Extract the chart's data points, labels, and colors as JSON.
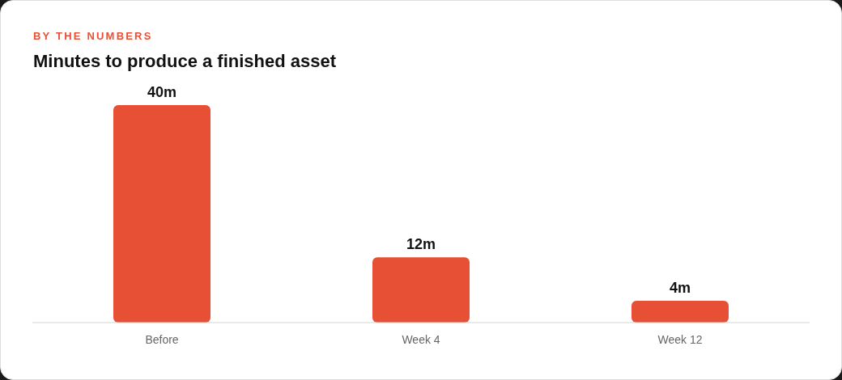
{
  "chart_data": {
    "type": "bar",
    "subtitle": "BY THE NUMBERS",
    "title": "Minutes to produce a finished asset",
    "categories": [
      "Before",
      "Week 4",
      "Week 12"
    ],
    "values": [
      40,
      12,
      4
    ],
    "value_labels": [
      "40m",
      "12m",
      "4m"
    ],
    "color": "#e85035",
    "tick_labels": "x",
    "grid": false,
    "legend": false
  }
}
